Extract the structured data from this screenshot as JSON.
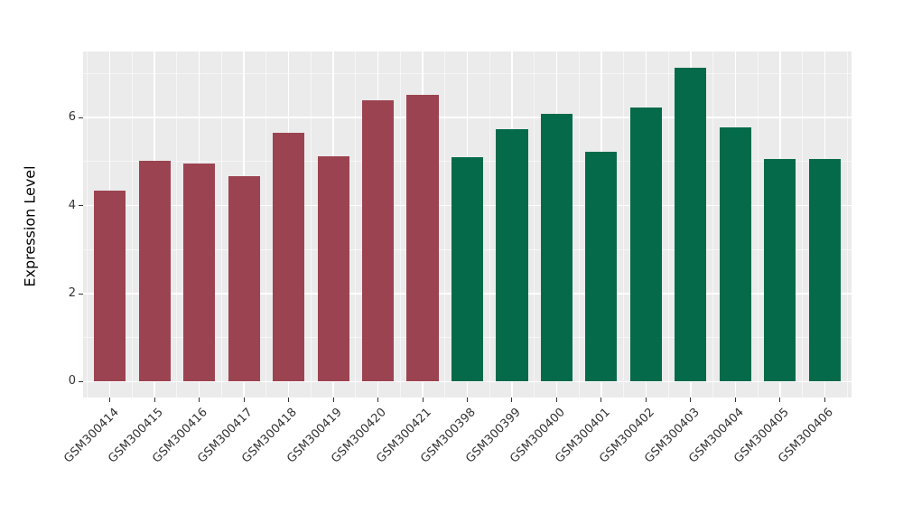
{
  "chart_data": {
    "type": "bar",
    "title": "",
    "xlabel": "",
    "ylabel": "Expression Level",
    "categories": [
      "GSM300414",
      "GSM300415",
      "GSM300416",
      "GSM300417",
      "GSM300418",
      "GSM300419",
      "GSM300420",
      "GSM300421",
      "GSM300398",
      "GSM300399",
      "GSM300400",
      "GSM300401",
      "GSM300402",
      "GSM300403",
      "GSM300404",
      "GSM300405",
      "GSM300406"
    ],
    "values": [
      4.33,
      5.01,
      4.95,
      4.66,
      5.66,
      5.12,
      6.4,
      6.52,
      5.09,
      5.73,
      6.08,
      5.23,
      6.23,
      7.14,
      5.78,
      5.06,
      5.06
    ],
    "bar_groups": [
      "groupA",
      "groupA",
      "groupA",
      "groupA",
      "groupA",
      "groupA",
      "groupA",
      "groupA",
      "groupB",
      "groupB",
      "groupB",
      "groupB",
      "groupB",
      "groupB",
      "groupB",
      "groupB",
      "groupB"
    ],
    "group_colors": {
      "groupA": "#9C4351",
      "groupB": "#046A4A"
    },
    "yticks": [
      0,
      2,
      4,
      6
    ],
    "yticks_minor": [
      1,
      3,
      5,
      7
    ],
    "ylim": [
      0,
      7.5
    ],
    "grid": "on",
    "legend": "none",
    "colors": {
      "panel_background": "#EBEBEB",
      "figure_background": "#FFFFFF",
      "grid_major": "#FFFFFF",
      "grid_minor": "#F7F7F7",
      "tick_text": "#333333",
      "axis_title_text": "#000000"
    }
  }
}
